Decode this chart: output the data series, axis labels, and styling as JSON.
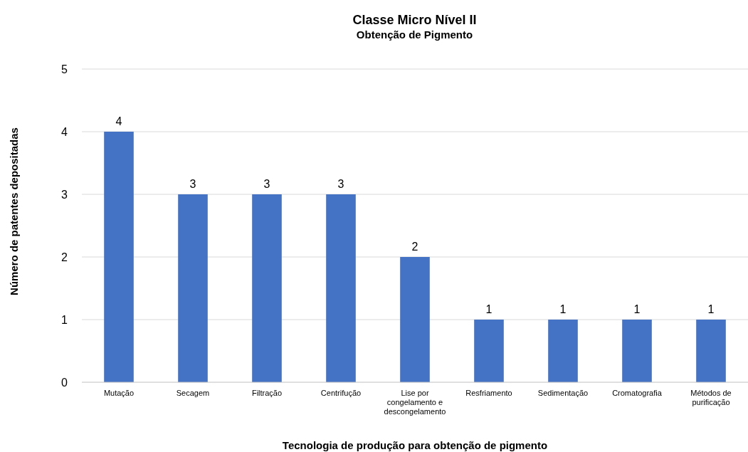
{
  "chart_data": {
    "type": "bar",
    "title": "Classe Micro Nível II",
    "subtitle": "Obtenção de Pigmento",
    "xlabel": "Tecnologia de produção para obtenção de pigmento",
    "ylabel": "Número de patentes depositadas",
    "categories": [
      "Mutação",
      "Secagem",
      "Filtração",
      "Centrifução",
      "Lise por congelamento e descongelamento",
      "Resfriamento",
      "Sedimentação",
      "Cromatografia",
      "Métodos de purificação"
    ],
    "values": [
      4,
      3,
      3,
      3,
      2,
      1,
      1,
      1,
      1
    ],
    "color": "#4472c4",
    "ylim": [
      0,
      5
    ],
    "yticks": [
      0,
      1,
      2,
      3,
      4,
      5
    ],
    "grid": "y",
    "data_labels": true
  }
}
